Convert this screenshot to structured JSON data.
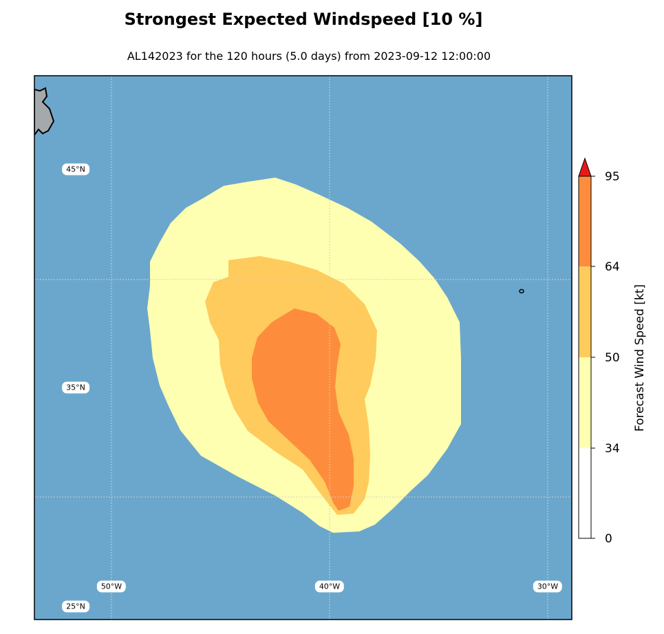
{
  "title": "Strongest Expected Windspeed [10 %]",
  "subtitle": "AL142023 for the 120 hours (5.0 days) from 2023-09-12 12:00:00",
  "map": {
    "ocean_color": "#6ba7cc",
    "land_color": "#a5a9ac",
    "lat_labels": [
      "45°N",
      "35°N",
      "25°N"
    ],
    "lon_labels": [
      "50°W",
      "40°W",
      "30°W"
    ]
  },
  "colorbar": {
    "label": "Forecast Wind Speed [kt]",
    "units": "kt",
    "ticks": [
      "0",
      "34",
      "50",
      "64",
      "95"
    ],
    "bands": [
      {
        "from": 0,
        "to": 34,
        "color": "#ffffff"
      },
      {
        "from": 34,
        "to": 50,
        "color": "#ffffb2"
      },
      {
        "from": 50,
        "to": 64,
        "color": "#fecb5c"
      },
      {
        "from": 64,
        "to": 95,
        "color": "#fd8d3c"
      }
    ],
    "extend_color": "#e31a1c"
  }
}
